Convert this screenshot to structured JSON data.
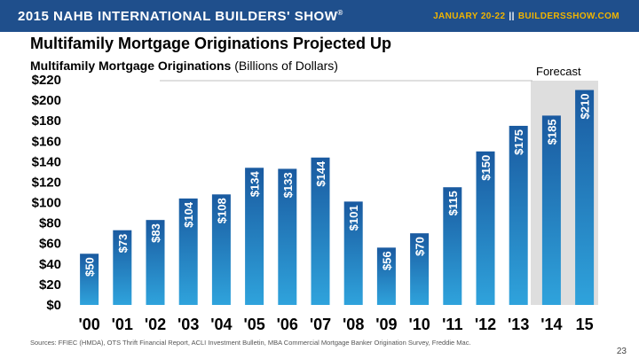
{
  "banner": {
    "event": "2015 NAHB INTERNATIONAL BUILDERS' SHOW",
    "event_mark": "®",
    "dates": "JANUARY 20-22",
    "separator": "||",
    "website": "BUILDERSSHOW.COM"
  },
  "slide": {
    "title": "Multifamily Mortgage Originations Projected Up",
    "subtitle_bold": "Multifamily Mortgage Originations",
    "subtitle_rest": " (Billions of Dollars)",
    "forecast_label": "Forecast",
    "source": "Sources: FFIEC (HMDA), OTS Thrift Financial Report, ACLI Investment Bulletin, MBA Commercial Mortgage Banker Origination Survey, Freddie Mac.",
    "page_number": "23"
  },
  "colors": {
    "banner": "#1f4f8c",
    "bar_top": "#1a5aa0",
    "bar_bottom": "#2fa3dc",
    "forecast_band": "#dedede"
  },
  "chart_data": {
    "type": "bar",
    "title": "Multifamily Mortgage Originations (Billions of Dollars)",
    "xlabel": "",
    "ylabel": "",
    "ylim": [
      0,
      220
    ],
    "ytick_step": 20,
    "yticks": [
      "$0",
      "$20",
      "$40",
      "$60",
      "$80",
      "$100",
      "$120",
      "$140",
      "$160",
      "$180",
      "$200",
      "$220"
    ],
    "grid": false,
    "categories": [
      "'00",
      "'01",
      "'02",
      "'03",
      "'04",
      "'05",
      "'06",
      "'07",
      "'08",
      "'09",
      "'10",
      "'11",
      "'12",
      "'13",
      "'14",
      "15"
    ],
    "values": [
      50,
      73,
      83,
      104,
      108,
      134,
      133,
      144,
      101,
      56,
      70,
      115,
      150,
      175,
      185,
      210
    ],
    "labels": [
      "$50",
      "$73",
      "$83",
      "$104",
      "$108",
      "$134",
      "$133",
      "$144",
      "$101",
      "$56",
      "$70",
      "$115",
      "$150",
      "$175",
      "$185",
      "$210"
    ],
    "forecast_categories": [
      "'14",
      "15"
    ]
  }
}
